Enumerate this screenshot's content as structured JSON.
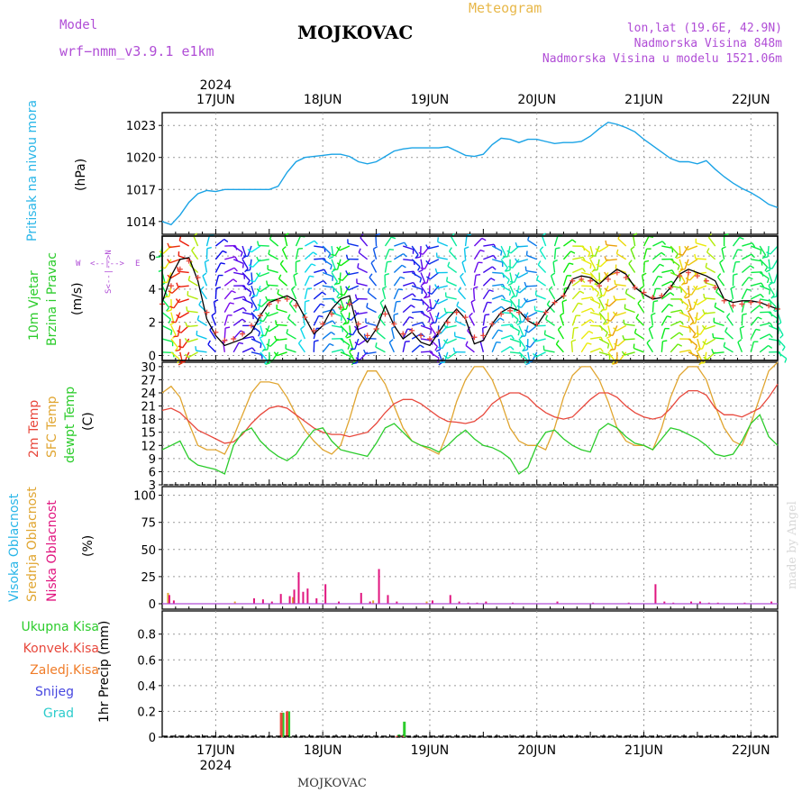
{
  "header": {
    "model_label": "Model",
    "model_name": "wrf−nmm_v3.9.1  e1km",
    "title": "MOJKOVAC",
    "meteogram": "Meteogram",
    "lonlat": "lon,lat (19.6E, 42.9N)",
    "altitude": "Nadmorska Visina 848m",
    "model_altitude": "Nadmorska Visina u modelu 1521.06m",
    "footer_station": "MOJKOVAC",
    "watermark": "made by Angel"
  },
  "colors": {
    "pressure": "#1aa3e6",
    "t2m": "#e8483c",
    "sfc": "#e0a530",
    "dewpt": "#2ccc2c",
    "high_cloud": "#29b6e8",
    "mid_cloud": "#e0a530",
    "low_cloud": "#e0157f",
    "purple_text": "#b04dd6",
    "gold_text": "#e8b84a"
  },
  "axes": {
    "year": "2024",
    "day_labels": [
      "17JUN",
      "18JUN",
      "19JUN",
      "20JUN",
      "21JUN",
      "22JUN"
    ],
    "xlim_hours": [
      0,
      138
    ],
    "day_positions_hours": [
      12,
      36,
      60,
      84,
      108,
      132
    ]
  },
  "panels": {
    "pressure": {
      "label": "Pritisak na nivou mora",
      "unit": "(hPa)",
      "ticks": [
        1014,
        1017,
        1020,
        1023
      ],
      "ylim": [
        1012.8,
        1024.2
      ]
    },
    "wind": {
      "label1": "10m Vjetar",
      "label2": "Brzina i Pravac",
      "unit": "(m/s)",
      "ticks": [
        0,
        2,
        4,
        6
      ],
      "ylim": [
        -0.3,
        7.2
      ],
      "compass_n": "N",
      "compass_s": "S",
      "compass_w": "W",
      "compass_e": "E",
      "compass_mid": "<--|-->"
    },
    "temp": {
      "label1": "2m Temp",
      "label2": "SFC Temp",
      "label3": "dewpt Temp",
      "unit": "(C)",
      "ticks": [
        3,
        6,
        9,
        12,
        15,
        18,
        21,
        24,
        27,
        30
      ],
      "ylim": [
        3,
        31
      ]
    },
    "cloud": {
      "label1": "Visoka Oblacnost",
      "label2": "Srednja Oblacnost",
      "label3": "Niska Oblacnost",
      "unit": "(%)",
      "ticks": [
        0,
        25,
        50,
        75,
        100
      ],
      "ylim": [
        -5,
        108
      ]
    },
    "precip": {
      "unit": "1hr Precip (mm)",
      "ticks": [
        0,
        0.2,
        0.4,
        0.6,
        0.8
      ],
      "ylim": [
        0,
        0.98
      ],
      "legend": [
        {
          "name": "Ukupna  Kisa",
          "color": "#2ccc2c"
        },
        {
          "name": "Konvek.Kisa",
          "color": "#e8483c"
        },
        {
          "name": "Zaledj.Kisa",
          "color": "#f07c28"
        },
        {
          "name": "Snijeg",
          "color": "#4848e0"
        },
        {
          "name": "Grad",
          "color": "#2ccccc"
        }
      ]
    }
  },
  "chart_data": [
    {
      "type": "line",
      "title": "Pritisak na nivou mora",
      "ylabel": "(hPa)",
      "x_hours": [
        0,
        2,
        4,
        6,
        8,
        10,
        12,
        14,
        16,
        18,
        20,
        22,
        24,
        26,
        28,
        30,
        32,
        34,
        36,
        38,
        40,
        42,
        44,
        46,
        48,
        50,
        52,
        54,
        56,
        58,
        60,
        62,
        64,
        66,
        68,
        70,
        72,
        74,
        76,
        78,
        80,
        82,
        84,
        86,
        88,
        90,
        92,
        94,
        96,
        98,
        100,
        102,
        104,
        106,
        108,
        110,
        112,
        114,
        116,
        118,
        120,
        122,
        124,
        126,
        128,
        130,
        132,
        134,
        136,
        138
      ],
      "series": [
        {
          "values": [
            1014,
            1013.7,
            1014.6,
            1015.8,
            1016.6,
            1016.9,
            1016.8,
            1017,
            1017,
            1017,
            1017,
            1017,
            1017,
            1017.3,
            1018.6,
            1019.6,
            1020,
            1020.1,
            1020.2,
            1020.3,
            1020.3,
            1020.1,
            1019.6,
            1019.4,
            1019.6,
            1020.1,
            1020.6,
            1020.8,
            1020.9,
            1020.9,
            1020.9,
            1020.9,
            1021,
            1020.6,
            1020.2,
            1020.1,
            1020.3,
            1021.2,
            1021.8,
            1021.7,
            1021.4,
            1021.7,
            1021.7,
            1021.5,
            1021.3,
            1021.4,
            1021.4,
            1021.5,
            1022,
            1022.7,
            1023.3,
            1023.1,
            1022.8,
            1022.4,
            1021.7,
            1021.1,
            1020.5,
            1019.9,
            1019.6,
            1019.6,
            1019.4,
            1019.7,
            1018.9,
            1018.2,
            1017.6,
            1017.1,
            1016.7,
            1016.2,
            1015.6,
            1015.3
          ]
        }
      ]
    },
    {
      "type": "line",
      "title": "10m Vjetar Brzina i Pravac",
      "ylabel": "(m/s)",
      "x_hours": [
        0,
        2,
        4,
        6,
        8,
        10,
        12,
        14,
        16,
        18,
        20,
        22,
        24,
        26,
        28,
        30,
        32,
        34,
        36,
        38,
        40,
        42,
        44,
        46,
        48,
        50,
        52,
        54,
        56,
        58,
        60,
        62,
        64,
        66,
        68,
        70,
        72,
        74,
        76,
        78,
        80,
        82,
        84,
        86,
        88,
        90,
        92,
        94,
        96,
        98,
        100,
        102,
        104,
        106,
        108,
        110,
        112,
        114,
        116,
        118,
        120,
        122,
        124,
        126,
        128,
        130,
        132,
        134,
        136,
        138
      ],
      "series": [
        {
          "values": [
            3.2,
            4.8,
            5.8,
            5.9,
            4.5,
            2.2,
            1.2,
            0.6,
            0.8,
            1,
            1.4,
            2.4,
            3.2,
            3.4,
            3.6,
            3.3,
            2.3,
            1.3,
            1.8,
            2.8,
            3.4,
            3.6,
            1.4,
            0.8,
            1.6,
            3,
            1.8,
            1,
            1.4,
            0.8,
            0.6,
            1.4,
            2.2,
            2.8,
            2.2,
            0.7,
            0.9,
            1.9,
            2.6,
            2.9,
            2.7,
            2.1,
            1.8,
            2.6,
            3.2,
            3.6,
            4.6,
            4.8,
            4.7,
            4.3,
            4.8,
            5.2,
            4.9,
            4.1,
            3.7,
            3.4,
            3.5,
            4.1,
            4.9,
            5.2,
            5,
            4.8,
            4.5,
            3.4,
            3.2,
            3.3,
            3.3,
            3.2,
            3,
            2.8
          ]
        },
        {
          "values": [
            3.1,
            4.2,
            5.2,
            5.7,
            4.7,
            2.6,
            1.4,
            0.9,
            1,
            1.3,
            1.8,
            2.4,
            3.1,
            3.3,
            3.4,
            3,
            2.3,
            1.5,
            1.9,
            2.5,
            2.9,
            3.1,
            1.9,
            1.2,
            1.6,
            2.5,
            1.9,
            1.3,
            1.5,
            1.2,
            1,
            1.4,
            2,
            2.6,
            2.3,
            1.1,
            1.2,
            1.9,
            2.5,
            2.7,
            2.6,
            2.2,
            1.9,
            2.6,
            3.2,
            3.6,
            4.5,
            4.6,
            4.5,
            4.2,
            4.6,
            5,
            4.7,
            4.1,
            3.8,
            3.5,
            3.6,
            4.1,
            4.8,
            5,
            4.8,
            4.5,
            4.1,
            3.3,
            3,
            3.1,
            3.2,
            3.2,
            3,
            2.8
          ]
        }
      ]
    },
    {
      "type": "line",
      "title": "2m Temp / SFC Temp / dewpt Temp",
      "ylabel": "(C)",
      "x_hours": [
        0,
        2,
        4,
        6,
        8,
        10,
        12,
        14,
        16,
        18,
        20,
        22,
        24,
        26,
        28,
        30,
        32,
        34,
        36,
        38,
        40,
        42,
        44,
        46,
        48,
        50,
        52,
        54,
        56,
        58,
        60,
        62,
        64,
        66,
        68,
        70,
        72,
        74,
        76,
        78,
        80,
        82,
        84,
        86,
        88,
        90,
        92,
        94,
        96,
        98,
        100,
        102,
        104,
        106,
        108,
        110,
        112,
        114,
        116,
        118,
        120,
        122,
        124,
        126,
        128,
        130,
        132,
        134,
        136,
        138
      ],
      "series": [
        {
          "name": "2m Temp",
          "values": [
            20,
            20.5,
            19.5,
            17.5,
            15.5,
            14.5,
            13.5,
            12.5,
            12.8,
            14.5,
            17,
            19,
            20.5,
            21,
            20.5,
            19,
            17.5,
            16,
            15,
            14.5,
            14.5,
            14,
            14.5,
            15,
            17,
            19.5,
            21.5,
            22.5,
            22.5,
            21.5,
            20,
            18.5,
            17.5,
            17.3,
            17,
            17.5,
            19,
            21.5,
            23,
            24,
            24,
            23,
            21,
            19.5,
            18.5,
            18,
            18.5,
            20.5,
            22.5,
            24,
            24,
            23,
            21,
            19.5,
            18.5,
            18,
            18.5,
            20.5,
            23,
            24.5,
            24.5,
            23.5,
            20.5,
            19,
            19,
            18.5,
            19.5,
            20.5,
            23,
            26
          ]
        },
        {
          "name": "SFC Temp",
          "values": [
            24,
            25.5,
            23,
            17,
            12,
            11,
            11,
            10,
            14,
            19,
            24,
            26.5,
            26.5,
            26,
            23,
            19,
            15.5,
            13,
            11,
            10,
            12,
            18,
            25,
            29,
            29,
            26,
            21,
            16,
            13,
            12,
            11,
            10,
            15,
            22,
            27,
            30,
            30,
            27,
            22,
            16,
            13,
            12,
            12,
            11,
            16,
            23,
            28,
            30,
            30,
            27,
            22,
            16,
            13,
            12,
            12,
            11,
            16,
            23,
            28,
            30,
            30,
            27,
            21,
            16,
            13,
            12,
            17,
            23,
            29,
            31
          ]
        },
        {
          "name": "dewpt Temp",
          "values": [
            11,
            12,
            13,
            9,
            7.5,
            7,
            6.5,
            5.5,
            12,
            15,
            16,
            13,
            11,
            9.5,
            8.5,
            10,
            13,
            15.5,
            16,
            13,
            11,
            10.5,
            10,
            9.5,
            12.5,
            16,
            17,
            15,
            13,
            12,
            11.5,
            10.5,
            12,
            14,
            15.5,
            13.5,
            12,
            11.5,
            10.5,
            9,
            5.5,
            7,
            12,
            15,
            15.5,
            13.5,
            12,
            11,
            10.5,
            15.5,
            17,
            16,
            14,
            12.5,
            12,
            11,
            13.5,
            16,
            15.5,
            14.5,
            13.5,
            12,
            10,
            9.5,
            10,
            13,
            17,
            19,
            14,
            12
          ]
        }
      ]
    },
    {
      "type": "bar",
      "title": "Visoka / Srednja / Niska Oblacnost",
      "ylabel": "(%)",
      "series": [
        {
          "name": "Visoka Oblacnost",
          "x_hours": [],
          "values": []
        },
        {
          "name": "Srednja Oblacnost",
          "x_hours": [
            1,
            16,
            29,
            47,
            59
          ],
          "values": [
            10,
            2,
            6,
            3,
            2
          ]
        },
        {
          "name": "Niska Oblacnost",
          "x_hours": [
            1,
            2,
            20,
            22,
            24,
            26,
            28,
            29,
            30,
            31,
            32,
            34,
            36,
            39,
            44,
            46,
            48,
            50,
            52,
            60,
            64,
            66,
            68,
            70,
            72,
            78,
            88,
            96,
            104,
            110,
            112,
            114,
            118,
            120,
            122,
            124,
            130,
            136
          ],
          "values": [
            8,
            3,
            5,
            4,
            2,
            9,
            7,
            13,
            29,
            11,
            14,
            5,
            18,
            2,
            10,
            2,
            32,
            8,
            2,
            3,
            8,
            2,
            1,
            1,
            2,
            1,
            2,
            1,
            1,
            18,
            2,
            1,
            2,
            2,
            1,
            1,
            1,
            2
          ]
        }
      ]
    },
    {
      "type": "bar",
      "title": "1hr Precip (mm)",
      "ylabel": "1hr Precip (mm)",
      "series": [
        {
          "name": "Ukupna  Kisa",
          "x_hours": [
            27,
            28.3,
            53,
            54.2
          ],
          "values": [
            0.19,
            0.2,
            0.02,
            0.12
          ]
        },
        {
          "name": "Konvek.Kisa",
          "x_hours": [
            27,
            28.3,
            53,
            54.2
          ],
          "values": [
            0.19,
            0.2,
            0.01,
            0.01
          ]
        },
        {
          "name": "Zaledj.Kisa",
          "x_hours": [],
          "values": []
        },
        {
          "name": "Snijeg",
          "x_hours": [],
          "values": []
        },
        {
          "name": "Grad",
          "x_hours": [],
          "values": []
        }
      ]
    }
  ]
}
